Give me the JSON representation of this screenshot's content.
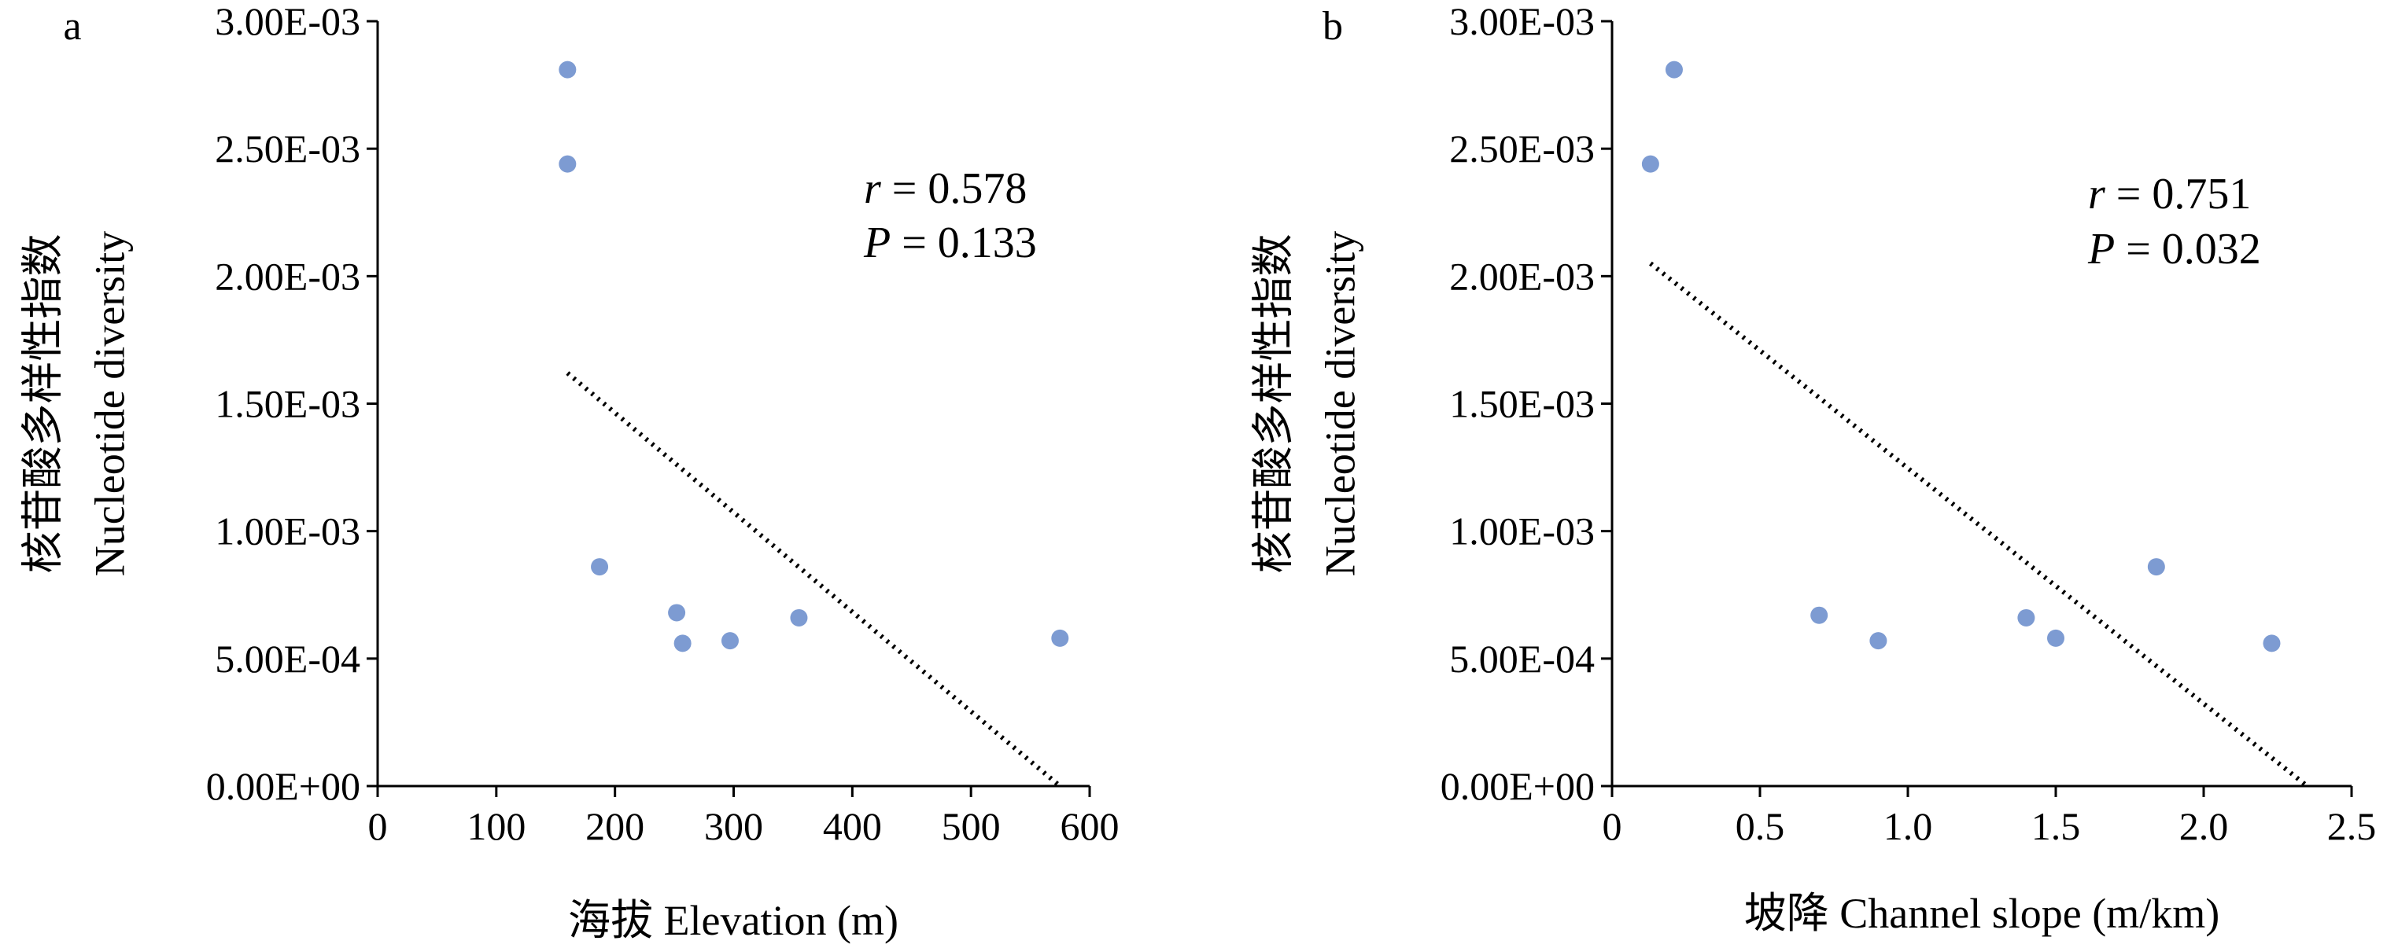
{
  "chart_data": [
    {
      "panel_label": "a",
      "type": "scatter",
      "xlabel": "海拔 Elevation (m)",
      "ylabel_lines": [
        "核苷酸多样性指数",
        "Nucleotide diversity"
      ],
      "xlim": [
        0,
        600
      ],
      "ylim": [
        0,
        0.003
      ],
      "x_ticks": [
        "0",
        "100",
        "200",
        "300",
        "400",
        "500",
        "600"
      ],
      "y_ticks": [
        "0.00E+00",
        "5.00E-04",
        "1.00E-03",
        "1.50E-03",
        "2.00E-03",
        "2.50E-03",
        "3.00E-03"
      ],
      "x_tick_values": [
        0,
        100,
        200,
        300,
        400,
        500,
        600
      ],
      "y_tick_values": [
        0,
        0.0005,
        0.001,
        0.0015,
        0.002,
        0.0025,
        0.003
      ],
      "points": [
        {
          "x": 160,
          "y": 0.00281
        },
        {
          "x": 160,
          "y": 0.00244
        },
        {
          "x": 187,
          "y": 0.00086
        },
        {
          "x": 252,
          "y": 0.00068
        },
        {
          "x": 257,
          "y": 0.00056
        },
        {
          "x": 297,
          "y": 0.00057
        },
        {
          "x": 355,
          "y": 0.00066
        },
        {
          "x": 575,
          "y": 0.00058
        }
      ],
      "trendline": {
        "x": [
          160,
          575
        ],
        "y": [
          0.00162,
          0.0
        ]
      },
      "stats": {
        "r_label": "r",
        "r_value": " = 0.578",
        "p_label": "P",
        "p_value": " = 0.133"
      },
      "marker_color": "#7d9bd2",
      "grid": false
    },
    {
      "panel_label": "b",
      "type": "scatter",
      "xlabel": "坡降 Channel slope (m/km)",
      "ylabel_lines": [
        "核苷酸多样性指数",
        "Nucleotide diversity"
      ],
      "xlim": [
        0,
        2.5
      ],
      "ylim": [
        0,
        0.003
      ],
      "x_ticks": [
        "0",
        "0.5",
        "1.0",
        "1.5",
        "2.0",
        "2.5"
      ],
      "y_ticks": [
        "0.00E+00",
        "5.00E-04",
        "1.00E-03",
        "1.50E-03",
        "2.00E-03",
        "2.50E-03",
        "3.00E-03"
      ],
      "x_tick_values": [
        0,
        0.5,
        1.0,
        1.5,
        2.0,
        2.5
      ],
      "y_tick_values": [
        0,
        0.0005,
        0.001,
        0.0015,
        0.002,
        0.0025,
        0.003
      ],
      "points": [
        {
          "x": 0.13,
          "y": 0.00244
        },
        {
          "x": 0.21,
          "y": 0.00281
        },
        {
          "x": 0.7,
          "y": 0.00067
        },
        {
          "x": 0.9,
          "y": 0.00057
        },
        {
          "x": 1.4,
          "y": 0.00066
        },
        {
          "x": 1.5,
          "y": 0.00058
        },
        {
          "x": 1.84,
          "y": 0.00086
        },
        {
          "x": 2.23,
          "y": 0.00056
        }
      ],
      "trendline": {
        "x": [
          0.13,
          2.35
        ],
        "y": [
          0.00205,
          0.0
        ]
      },
      "stats": {
        "r_label": "r",
        "r_value": " = 0.751",
        "p_label": "P",
        "p_value": " = 0.032"
      },
      "marker_color": "#7d9bd2",
      "grid": false
    }
  ]
}
